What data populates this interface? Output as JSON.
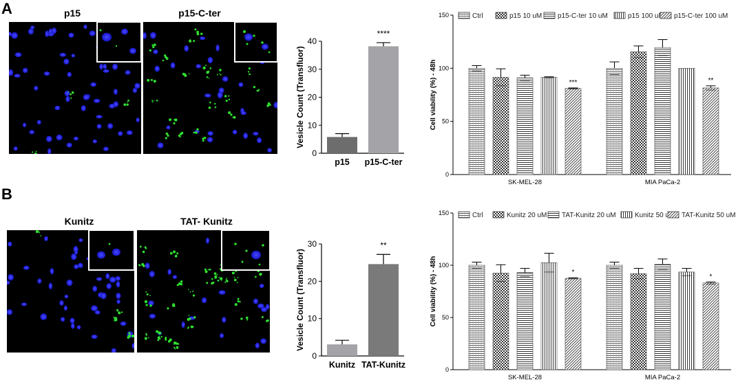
{
  "panels": {
    "A": {
      "letter": "A",
      "image_labels": [
        "p15",
        "p15-C-ter"
      ]
    },
    "B": {
      "letter": "B",
      "image_labels": [
        "Kunitz",
        "TAT- Kunitz"
      ]
    }
  },
  "chart_data": [
    {
      "id": "A-vesicle",
      "type": "bar",
      "categories": [
        "p15",
        "p15-C-ter"
      ],
      "values": [
        5.8,
        38.2
      ],
      "errors": [
        1.2,
        1.3
      ],
      "colors": [
        "#6d6d6d",
        "#a3a3a8"
      ],
      "annotations": [
        "",
        "****"
      ],
      "ylabel": "Vesicle Count (Transfluor)",
      "ylim": [
        0,
        40
      ],
      "yticks": [
        0,
        10,
        20,
        30,
        40
      ]
    },
    {
      "id": "A-viability",
      "type": "bar",
      "categories": [
        "SK-MEL-28",
        "MIA PaCa-2"
      ],
      "series": [
        {
          "name": "Ctrl",
          "values": [
            100,
            100
          ],
          "errors": [
            2.5,
            6
          ],
          "pattern": "hgrid"
        },
        {
          "name": "p15 10 uM",
          "values": [
            91.5,
            115.5
          ],
          "errors": [
            8,
            5.5
          ],
          "pattern": "check"
        },
        {
          "name": "p15-C-ter 10 uM",
          "values": [
            91,
            119.5
          ],
          "errors": [
            2.5,
            7.5
          ],
          "pattern": "hlines"
        },
        {
          "name": "p15 100 uM",
          "values": [
            91.5,
            100
          ],
          "errors": [
            0.5,
            0
          ],
          "pattern": "vlines"
        },
        {
          "name": "p15-C-ter 100 uM",
          "values": [
            81,
            81.5
          ],
          "errors": [
            0.5,
            2
          ],
          "pattern": "diag"
        }
      ],
      "annotations": [
        {
          "series": 4,
          "category": 0,
          "text": "***"
        },
        {
          "series": 4,
          "category": 1,
          "text": "**"
        }
      ],
      "ylabel": "Cell viability (%) -  48h",
      "ylim": [
        0,
        150
      ],
      "yticks": [
        0,
        50,
        100,
        150
      ],
      "legend": "top"
    },
    {
      "id": "B-vesicle",
      "type": "bar",
      "categories": [
        "Kunitz",
        "TAT-Kunitz"
      ],
      "values": [
        3.1,
        24.6
      ],
      "errors": [
        1.1,
        2.6
      ],
      "colors": [
        "#a3a3a8",
        "#7a7a7a"
      ],
      "annotations": [
        "",
        "**"
      ],
      "ylabel": "Vesicle Count (Transfluor)",
      "ylim": [
        0,
        30
      ],
      "yticks": [
        0,
        10,
        20,
        30
      ]
    },
    {
      "id": "B-viability",
      "type": "bar",
      "categories": [
        "SK-MEL-28",
        "MIA PaCa-2"
      ],
      "series": [
        {
          "name": "Ctrl",
          "values": [
            100,
            100
          ],
          "errors": [
            3,
            3
          ],
          "pattern": "hgrid"
        },
        {
          "name": "Kunitz 20 uM",
          "values": [
            92.5,
            92
          ],
          "errors": [
            8,
            5
          ],
          "pattern": "check"
        },
        {
          "name": "TAT-Kunitz 20 uM",
          "values": [
            93,
            101
          ],
          "errors": [
            4,
            5
          ],
          "pattern": "hlines"
        },
        {
          "name": "Kunitz 50 uM",
          "values": [
            102.5,
            93.5
          ],
          "errors": [
            9,
            3.5
          ],
          "pattern": "vlines"
        },
        {
          "name": "TAT-Kunitz 50 uM",
          "values": [
            87.5,
            83
          ],
          "errors": [
            0.5,
            1
          ],
          "pattern": "diag"
        }
      ],
      "annotations": [
        {
          "series": 4,
          "category": 0,
          "text": "*"
        },
        {
          "series": 4,
          "category": 1,
          "text": "*"
        }
      ],
      "ylabel": "Cell viability (%) -  48h",
      "ylim": [
        0,
        150
      ],
      "yticks": [
        0,
        50,
        100,
        150
      ],
      "legend": "top"
    }
  ]
}
